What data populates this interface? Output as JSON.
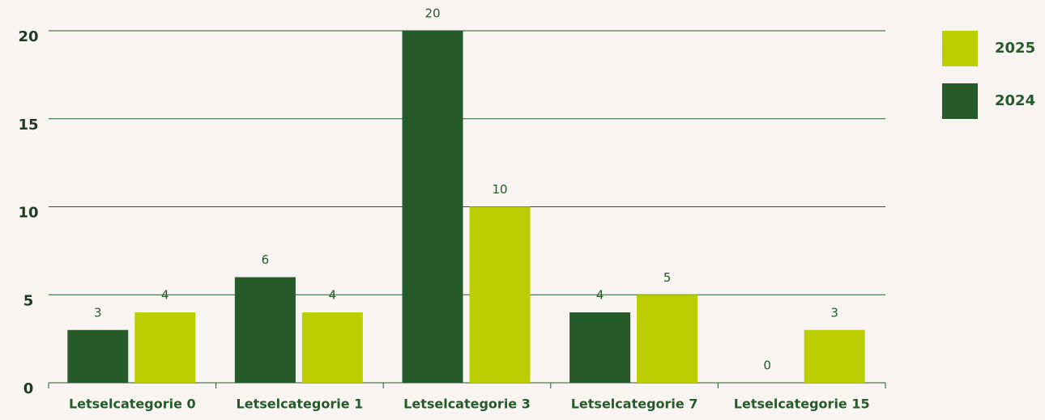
{
  "chart_data": {
    "type": "bar",
    "categories": [
      "Letselcategorie 0",
      "Letselcategorie 1",
      "Letselcategorie 3",
      "Letselcategorie 7",
      "Letselcategorie 15"
    ],
    "series": [
      {
        "name": "2024",
        "color": "#265a2a",
        "values": [
          3,
          6,
          20,
          4,
          0
        ]
      },
      {
        "name": "2025",
        "color": "#bccd00",
        "values": [
          4,
          4,
          10,
          5,
          3
        ]
      }
    ],
    "ylim": [
      0,
      20
    ],
    "yticks": [
      0,
      5,
      10,
      15,
      20
    ],
    "grid": true,
    "legend": "right"
  }
}
